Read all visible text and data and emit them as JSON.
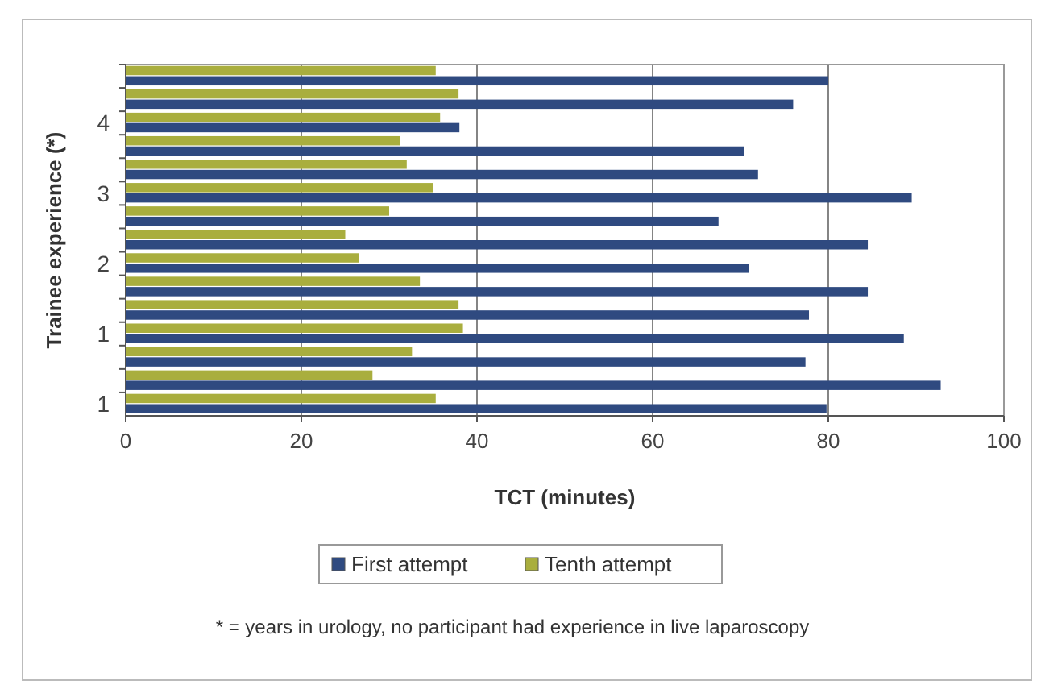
{
  "chart_data": {
    "type": "bar",
    "orientation": "horizontal",
    "xlabel": "TCT (minutes)",
    "ylabel": "Trainee experience (*)",
    "categories": [
      null,
      null,
      "4",
      null,
      null,
      "3",
      null,
      null,
      "2",
      null,
      null,
      "1",
      null,
      null,
      "1"
    ],
    "series": [
      {
        "name": "First attempt",
        "color": "#2f4a80",
        "values": [
          80,
          76,
          38,
          70.4,
          72,
          89.5,
          67.5,
          84.5,
          71,
          84.5,
          77.8,
          88.6,
          77.4,
          92.8,
          79.8
        ]
      },
      {
        "name": "Tenth attempt",
        "color": "#a9ae3e",
        "values": [
          35.3,
          37.9,
          35.8,
          31.2,
          32,
          35,
          30,
          25,
          26.6,
          33.5,
          37.9,
          38.4,
          32.6,
          28.1,
          35.3
        ]
      }
    ],
    "xlim": [
      0,
      100
    ],
    "xticks": [
      0,
      20,
      40,
      60,
      80,
      100
    ],
    "grid": "x",
    "legend": "bottom",
    "annotations": [
      "* = years in urology, no participant had experience in live laparoscopy"
    ]
  }
}
